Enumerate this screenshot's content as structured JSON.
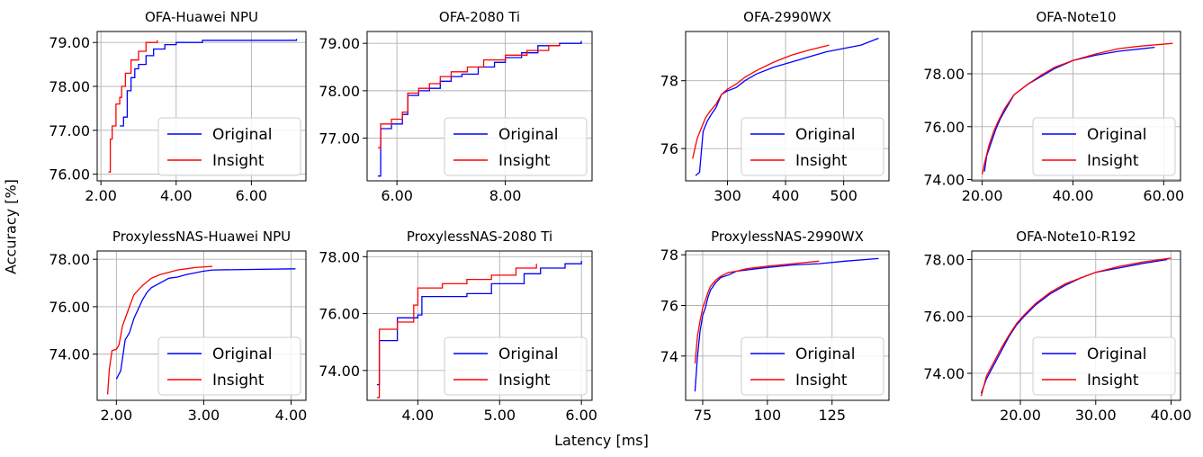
{
  "figure": {
    "xlabel": "Latency [ms]",
    "ylabel": "Accuracy [%]"
  },
  "chart_data": [
    {
      "type": "line",
      "title": "OFA-Huawei NPU",
      "xlim": [
        1.9,
        7.45
      ],
      "ylim": [
        75.85,
        79.25
      ],
      "xticks": [
        2,
        4,
        6
      ],
      "xtick_labels": [
        "2.00",
        "4.00",
        "6.00"
      ],
      "yticks": [
        76,
        77,
        78,
        79
      ],
      "ytick_labels": [
        "76.00",
        "77.00",
        "78.00",
        "79.00"
      ],
      "grid": true,
      "legend_position": "lower-right",
      "series": [
        {
          "name": "Original",
          "color": "#0000ff",
          "steps": true,
          "x": [
            2.5,
            2.6,
            2.7,
            2.8,
            2.9,
            3.0,
            3.2,
            3.4,
            3.7,
            4.0,
            4.7,
            7.2
          ],
          "y": [
            77.1,
            77.3,
            77.9,
            78.2,
            78.4,
            78.5,
            78.7,
            78.85,
            78.95,
            79.0,
            79.05,
            79.08
          ]
        },
        {
          "name": "Insight",
          "color": "#ff0000",
          "steps": true,
          "x": [
            2.2,
            2.25,
            2.3,
            2.4,
            2.5,
            2.55,
            2.65,
            2.8,
            3.0,
            3.2,
            3.5
          ],
          "y": [
            76.05,
            76.8,
            77.1,
            77.6,
            77.75,
            78.0,
            78.3,
            78.6,
            78.8,
            79.0,
            79.05
          ]
        }
      ]
    },
    {
      "type": "line",
      "title": "OFA-2080 Ti",
      "xlim": [
        5.45,
        9.6
      ],
      "ylim": [
        76.1,
        79.25
      ],
      "xticks": [
        6,
        8
      ],
      "xtick_labels": [
        "6.00",
        "8.00"
      ],
      "yticks": [
        77,
        78,
        79
      ],
      "ytick_labels": [
        "77.00",
        "78.00",
        "79.00"
      ],
      "grid": true,
      "legend_position": "lower-right",
      "series": [
        {
          "name": "Original",
          "color": "#0000ff",
          "steps": true,
          "x": [
            5.65,
            5.7,
            5.9,
            6.1,
            6.2,
            6.4,
            6.6,
            6.8,
            7.0,
            7.2,
            7.5,
            7.8,
            8.0,
            8.3,
            8.6,
            9.0,
            9.4
          ],
          "y": [
            76.2,
            77.2,
            77.3,
            77.5,
            77.9,
            78.0,
            78.05,
            78.2,
            78.3,
            78.35,
            78.5,
            78.6,
            78.7,
            78.8,
            78.95,
            79.0,
            79.05
          ]
        },
        {
          "name": "Insight",
          "color": "#ff0000",
          "steps": true,
          "x": [
            5.65,
            5.7,
            5.9,
            6.1,
            6.2,
            6.4,
            6.6,
            6.8,
            7.0,
            7.3,
            7.6,
            8.0,
            8.4,
            8.8,
            9.0
          ],
          "y": [
            76.8,
            77.3,
            77.4,
            77.55,
            77.95,
            78.05,
            78.15,
            78.3,
            78.4,
            78.5,
            78.65,
            78.75,
            78.85,
            78.95,
            79.0
          ]
        }
      ]
    },
    {
      "type": "line",
      "title": "OFA-2990WX",
      "xlim": [
        228,
        578
      ],
      "ylim": [
        75.05,
        79.45
      ],
      "xticks": [
        300,
        400,
        500
      ],
      "xtick_labels": [
        "300",
        "400",
        "500"
      ],
      "yticks": [
        76,
        78
      ],
      "ytick_labels": [
        "76",
        "78"
      ],
      "grid": true,
      "legend_position": "lower-right",
      "series": [
        {
          "name": "Original",
          "color": "#0000ff",
          "steps": false,
          "x": [
            245,
            252,
            258,
            265,
            272,
            280,
            290,
            300,
            315,
            330,
            350,
            380,
            410,
            440,
            470,
            500,
            530,
            560
          ],
          "y": [
            75.2,
            75.3,
            76.5,
            76.8,
            77.0,
            77.2,
            77.6,
            77.7,
            77.8,
            78.0,
            78.2,
            78.4,
            78.55,
            78.7,
            78.85,
            78.95,
            79.05,
            79.25
          ]
        },
        {
          "name": "Insight",
          "color": "#ff0000",
          "steps": false,
          "x": [
            240,
            248,
            255,
            262,
            270,
            280,
            290,
            300,
            315,
            330,
            350,
            380,
            410,
            440,
            475
          ],
          "y": [
            75.7,
            76.3,
            76.6,
            76.9,
            77.1,
            77.3,
            77.6,
            77.75,
            77.9,
            78.1,
            78.3,
            78.55,
            78.75,
            78.9,
            79.05
          ]
        }
      ]
    },
    {
      "type": "line",
      "title": "OFA-Note10",
      "xlim": [
        17.7,
        63.7
      ],
      "ylim": [
        73.95,
        79.6
      ],
      "xticks": [
        20,
        40,
        60
      ],
      "xtick_labels": [
        "20.00",
        "40.00",
        "60.00"
      ],
      "yticks": [
        74,
        76,
        78
      ],
      "ytick_labels": [
        "74.00",
        "76.00",
        "78.00"
      ],
      "grid": true,
      "legend_position": "lower-right",
      "series": [
        {
          "name": "Original",
          "color": "#0000ff",
          "steps": false,
          "x": [
            20.5,
            21,
            22,
            23,
            24,
            25,
            27,
            30,
            33,
            36,
            40,
            45,
            50,
            58
          ],
          "y": [
            74.3,
            74.9,
            75.4,
            75.9,
            76.3,
            76.6,
            77.2,
            77.6,
            77.9,
            78.2,
            78.5,
            78.7,
            78.85,
            79.0
          ]
        },
        {
          "name": "Insight",
          "color": "#ff0000",
          "steps": false,
          "x": [
            20,
            20.5,
            21.5,
            22.5,
            23.5,
            25,
            27,
            30,
            33,
            36,
            40,
            45,
            50,
            55,
            62
          ],
          "y": [
            74.2,
            74.6,
            75.3,
            75.8,
            76.2,
            76.7,
            77.2,
            77.6,
            77.95,
            78.25,
            78.5,
            78.75,
            78.95,
            79.05,
            79.15
          ]
        }
      ]
    },
    {
      "type": "line",
      "title": "ProxylessNAS-Huawei NPU",
      "xlim": [
        1.78,
        4.17
      ],
      "ylim": [
        72.05,
        78.35
      ],
      "xticks": [
        2,
        3,
        4
      ],
      "xtick_labels": [
        "2.00",
        "3.00",
        "4.00"
      ],
      "yticks": [
        74,
        76,
        78
      ],
      "ytick_labels": [
        "74.00",
        "76.00",
        "78.00"
      ],
      "grid": true,
      "legend_position": "lower-right",
      "series": [
        {
          "name": "Original",
          "color": "#0000ff",
          "steps": false,
          "x": [
            2.0,
            2.05,
            2.1,
            2.15,
            2.2,
            2.25,
            2.3,
            2.35,
            2.4,
            2.5,
            2.6,
            2.7,
            2.8,
            3.0,
            3.1,
            4.05
          ],
          "y": [
            72.95,
            73.3,
            74.6,
            74.9,
            75.5,
            75.9,
            76.3,
            76.6,
            76.8,
            77.0,
            77.2,
            77.25,
            77.35,
            77.5,
            77.55,
            77.6
          ]
        },
        {
          "name": "Insight",
          "color": "#ff0000",
          "steps": false,
          "x": [
            1.9,
            1.92,
            1.95,
            2.0,
            2.03,
            2.07,
            2.1,
            2.15,
            2.2,
            2.3,
            2.4,
            2.5,
            2.6,
            2.7,
            2.8,
            2.9,
            3.1
          ],
          "y": [
            72.3,
            73.4,
            74.15,
            74.2,
            74.4,
            75.2,
            75.5,
            76.0,
            76.5,
            76.9,
            77.2,
            77.35,
            77.45,
            77.55,
            77.6,
            77.65,
            77.7
          ]
        }
      ]
    },
    {
      "type": "line",
      "title": "ProxylessNAS-2080 Ti",
      "xlim": [
        3.38,
        6.13
      ],
      "ylim": [
        72.95,
        78.2
      ],
      "xticks": [
        4,
        5,
        6
      ],
      "xtick_labels": [
        "4.00",
        "5.00",
        "6.00"
      ],
      "yticks": [
        74,
        76,
        78
      ],
      "ytick_labels": [
        "74.00",
        "76.00",
        "78.00"
      ],
      "grid": true,
      "legend_position": "lower-right",
      "series": [
        {
          "name": "Original",
          "color": "#0000ff",
          "steps": true,
          "x": [
            3.5,
            3.53,
            3.75,
            4.0,
            4.05,
            4.6,
            4.9,
            5.3,
            5.5,
            5.8,
            6.0
          ],
          "y": [
            73.5,
            75.05,
            75.85,
            75.95,
            76.6,
            76.7,
            77.05,
            77.4,
            77.6,
            77.75,
            77.85
          ]
        },
        {
          "name": "Insight",
          "color": "#ff0000",
          "steps": true,
          "x": [
            3.5,
            3.53,
            3.75,
            3.95,
            4.0,
            4.3,
            4.6,
            4.9,
            5.2,
            5.45
          ],
          "y": [
            73.05,
            75.45,
            75.7,
            76.3,
            76.9,
            77.05,
            77.2,
            77.35,
            77.6,
            77.75
          ]
        }
      ]
    },
    {
      "type": "line",
      "title": "ProxylessNAS-2990WX",
      "xlim": [
        68.4,
        147
      ],
      "ylim": [
        72.25,
        78.15
      ],
      "xticks": [
        75,
        100,
        125
      ],
      "xtick_labels": [
        "75",
        "100",
        "125"
      ],
      "yticks": [
        74,
        76,
        78
      ],
      "ytick_labels": [
        "74",
        "76",
        "78"
      ],
      "grid": true,
      "legend_position": "lower-right",
      "series": [
        {
          "name": "Original",
          "color": "#0000ff",
          "steps": false,
          "x": [
            72,
            73,
            74,
            75,
            76,
            77,
            78,
            80,
            82,
            85,
            88,
            92,
            96,
            100,
            110,
            120,
            130,
            143
          ],
          "y": [
            72.6,
            74.0,
            75.0,
            75.6,
            75.9,
            76.3,
            76.6,
            76.9,
            77.1,
            77.2,
            77.35,
            77.4,
            77.45,
            77.5,
            77.6,
            77.65,
            77.75,
            77.85
          ]
        },
        {
          "name": "Insight",
          "color": "#ff0000",
          "steps": false,
          "x": [
            72,
            73,
            74,
            75,
            76,
            77,
            78,
            80,
            82,
            85,
            88,
            92,
            96,
            100,
            110,
            120
          ],
          "y": [
            73.7,
            74.8,
            75.4,
            75.9,
            76.2,
            76.5,
            76.75,
            77.0,
            77.15,
            77.3,
            77.35,
            77.45,
            77.5,
            77.55,
            77.65,
            77.75
          ]
        }
      ]
    },
    {
      "type": "line",
      "title": "OFA-Note10-R192",
      "xlim": [
        13.55,
        41.25
      ],
      "ylim": [
        73.05,
        78.3
      ],
      "xticks": [
        20,
        30,
        40
      ],
      "xtick_labels": [
        "20.00",
        "30.00",
        "40.00"
      ],
      "yticks": [
        74,
        76,
        78
      ],
      "ytick_labels": [
        "74.00",
        "76.00",
        "78.00"
      ],
      "grid": true,
      "legend_position": "lower-right",
      "series": [
        {
          "name": "Original",
          "color": "#0000ff",
          "steps": false,
          "x": [
            14.8,
            15.5,
            16.5,
            17.5,
            18.5,
            19.5,
            20.5,
            22,
            24,
            26,
            28,
            30,
            33,
            36,
            39.5
          ],
          "y": [
            73.3,
            73.8,
            74.3,
            74.8,
            75.3,
            75.7,
            76.0,
            76.4,
            76.8,
            77.1,
            77.35,
            77.55,
            77.7,
            77.85,
            78.0
          ]
        },
        {
          "name": "Insight",
          "color": "#ff0000",
          "steps": false,
          "x": [
            14.8,
            15.5,
            16.5,
            17.5,
            18.5,
            19.5,
            20.5,
            22,
            24,
            26,
            28,
            30,
            33,
            36,
            40
          ],
          "y": [
            73.2,
            73.9,
            74.4,
            74.9,
            75.35,
            75.75,
            76.05,
            76.45,
            76.85,
            77.15,
            77.35,
            77.55,
            77.75,
            77.9,
            78.05
          ]
        }
      ]
    }
  ]
}
